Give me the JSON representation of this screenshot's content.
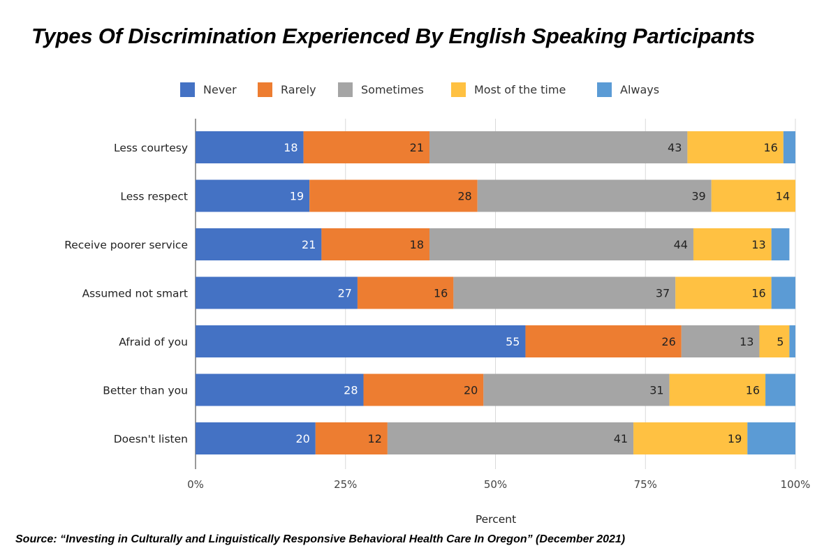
{
  "chart_data": {
    "type": "bar",
    "orientation": "horizontal",
    "stacked": true,
    "title": "Types Of Discrimination Experienced By English Speaking Participants",
    "xlabel": "Percent",
    "ylabel": "",
    "xlim": [
      0,
      100
    ],
    "x_ticks": [
      "0%",
      "25%",
      "50%",
      "75%",
      "100%"
    ],
    "grid": true,
    "legend_position": "top",
    "categories": [
      "Less courtesy",
      "Less respect",
      "Receive poorer service",
      "Assumed not smart",
      "Afraid of you",
      "Better than you",
      "Doesn't listen"
    ],
    "series": [
      {
        "name": "Never",
        "color": "#4472c4",
        "values": [
          18,
          19,
          21,
          27,
          55,
          28,
          20
        ]
      },
      {
        "name": "Rarely",
        "color": "#ed7d31",
        "values": [
          21,
          28,
          18,
          16,
          26,
          20,
          12
        ]
      },
      {
        "name": "Sometimes",
        "color": "#a5a5a5",
        "values": [
          43,
          39,
          44,
          37,
          13,
          31,
          41
        ]
      },
      {
        "name": "Most of the time",
        "color": "#ffc142",
        "values": [
          16,
          14,
          13,
          16,
          5,
          16,
          19
        ]
      },
      {
        "name": "Always",
        "color": "#5b9bd5",
        "values": [
          3,
          1,
          3,
          4,
          1,
          5,
          9
        ]
      }
    ],
    "label_colors": [
      "#ffffff",
      "#222222",
      "#222222",
      "#222222",
      "#ffffff"
    ],
    "labeled_series": [
      0,
      1,
      2,
      3
    ]
  },
  "source": "Source: “Investing in Culturally and Linguistically Responsive Behavioral Health Care In Oregon” (December 2021)"
}
